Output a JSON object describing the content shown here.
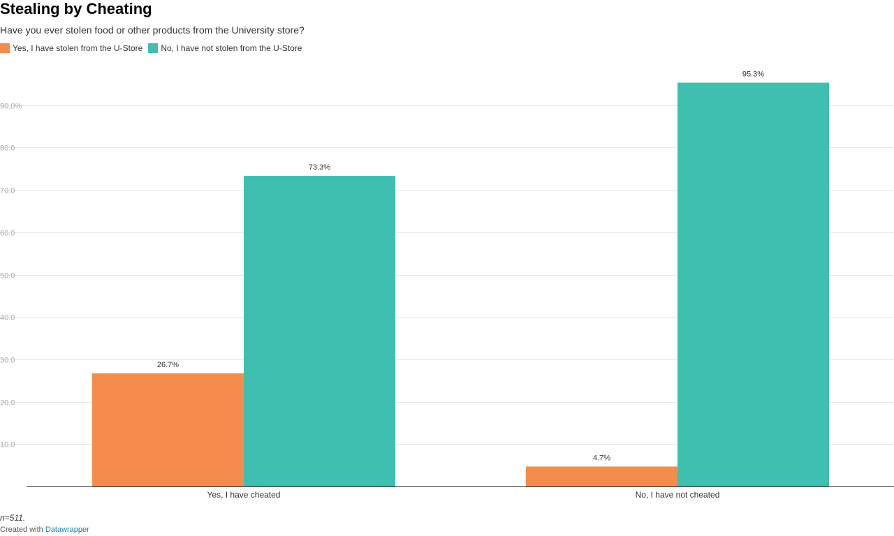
{
  "header": {
    "title": "Stealing by Cheating",
    "subtitle": "Have you ever stolen food or other products from the University store?"
  },
  "legend": {
    "items": [
      {
        "label": "Yes, I have stolen from the U-Store",
        "color": "#f68c4c"
      },
      {
        "label": "No, I have not stolen from the U-Store",
        "color": "#3fbfb0"
      }
    ]
  },
  "chart_data": {
    "type": "bar",
    "categories": [
      "Yes, I have cheated",
      "No, I have not cheated"
    ],
    "series": [
      {
        "name": "Yes, I have stolen from the U-Store",
        "values": [
          26.7,
          4.7
        ],
        "color": "#f68c4c"
      },
      {
        "name": "No, I have not stolen from the U-Store",
        "values": [
          73.3,
          95.3
        ],
        "color": "#3fbfb0"
      }
    ],
    "value_labels": [
      [
        "26.7%",
        "4.7%"
      ],
      [
        "73.3%",
        "95.3%"
      ]
    ],
    "y_ticks": [
      10,
      20,
      30,
      40,
      50,
      60,
      70,
      80,
      90
    ],
    "y_tick_labels": [
      "10.0",
      "20.0",
      "30.0",
      "40.0",
      "50.0",
      "60.0",
      "70.0",
      "80.0",
      "90.0%"
    ],
    "ylim": [
      0,
      100
    ],
    "grid": true,
    "legend_position": "top-left"
  },
  "notes": "n=511.",
  "footer": {
    "prefix": "Created with",
    "link_label": "Datawrapper"
  }
}
